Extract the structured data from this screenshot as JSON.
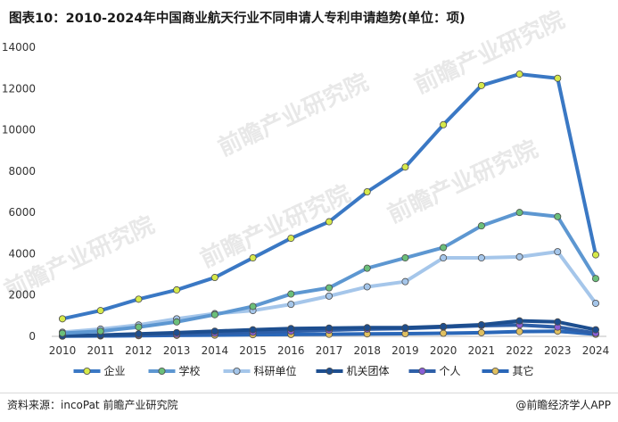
{
  "title": "图表10：2010-2024年中国商业航天行业不同申请人专利申请趋势(单位：项)",
  "source": "资料来源：incoPat 前瞻产业研究院",
  "brand": "@前瞻经济学人APP",
  "watermark": "前瞻产业研究院",
  "chart_data": {
    "type": "line",
    "title": "图表10：2010-2024年中国商业航天行业不同申请人专利申请趋势(单位：项)",
    "xlabel": "",
    "ylabel": "",
    "x": [
      "2010",
      "2011",
      "2012",
      "2013",
      "2014",
      "2015",
      "2016",
      "2017",
      "2018",
      "2019",
      "2020",
      "2021",
      "2022",
      "2023",
      "2024"
    ],
    "ylim": [
      0,
      14000
    ],
    "yticks": [
      0,
      2000,
      4000,
      6000,
      8000,
      10000,
      12000,
      14000
    ],
    "grid": false,
    "legend": "bottom",
    "series": [
      {
        "name": "企业",
        "color": "#3a78c4",
        "marker": "#d6e94a",
        "values": [
          850,
          1250,
          1800,
          2250,
          2850,
          3800,
          4750,
          5550,
          7000,
          8200,
          10250,
          12150,
          12700,
          12500,
          3950
        ]
      },
      {
        "name": "学校",
        "color": "#5d97d1",
        "marker": "#6bbf7a",
        "values": [
          150,
          250,
          450,
          700,
          1050,
          1450,
          2050,
          2350,
          3300,
          3800,
          4300,
          5350,
          6000,
          5800,
          2800
        ]
      },
      {
        "name": "科研单位",
        "color": "#a5c6ea",
        "marker": "#a5c6ea",
        "values": [
          200,
          350,
          550,
          850,
          1100,
          1250,
          1550,
          1950,
          2400,
          2650,
          3800,
          3800,
          3850,
          4100,
          1600
        ]
      },
      {
        "name": "机关团体",
        "color": "#1d4e8f",
        "marker": "#1d4e8f",
        "values": [
          30,
          60,
          120,
          180,
          250,
          320,
          380,
          400,
          420,
          420,
          480,
          560,
          750,
          700,
          320
        ]
      },
      {
        "name": "个人",
        "color": "#2e5fa8",
        "marker": "#8b5fd6",
        "values": [
          20,
          40,
          70,
          100,
          150,
          200,
          250,
          300,
          350,
          380,
          450,
          520,
          550,
          450,
          150
        ]
      },
      {
        "name": "其它",
        "color": "#2a67b8",
        "marker": "#e0c060",
        "values": [
          10,
          20,
          30,
          50,
          60,
          80,
          90,
          100,
          120,
          130,
          150,
          180,
          230,
          250,
          100
        ]
      }
    ]
  }
}
